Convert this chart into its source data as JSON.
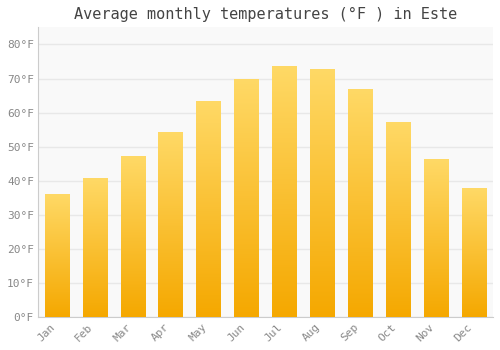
{
  "title": "Average monthly temperatures (°F ) in Este",
  "months": [
    "Jan",
    "Feb",
    "Mar",
    "Apr",
    "May",
    "Jun",
    "Jul",
    "Aug",
    "Sep",
    "Oct",
    "Nov",
    "Dec"
  ],
  "values": [
    36,
    40.5,
    47,
    54,
    63,
    69.5,
    73.5,
    72.5,
    66.5,
    57,
    46,
    37.5
  ],
  "bar_color_bottom": "#F5A800",
  "bar_color_top": "#FFD966",
  "background_color": "#ffffff",
  "plot_bg_color": "#f9f9f9",
  "grid_color": "#e8e8e8",
  "ylabel_ticks": [
    "0°F",
    "10°F",
    "20°F",
    "30°F",
    "40°F",
    "50°F",
    "60°F",
    "70°F",
    "80°F"
  ],
  "ytick_values": [
    0,
    10,
    20,
    30,
    40,
    50,
    60,
    70,
    80
  ],
  "ylim": [
    0,
    85
  ],
  "title_fontsize": 11,
  "tick_fontsize": 8,
  "tick_color": "#888888",
  "title_color": "#444444",
  "bar_width": 0.65,
  "spine_color": "#cccccc"
}
